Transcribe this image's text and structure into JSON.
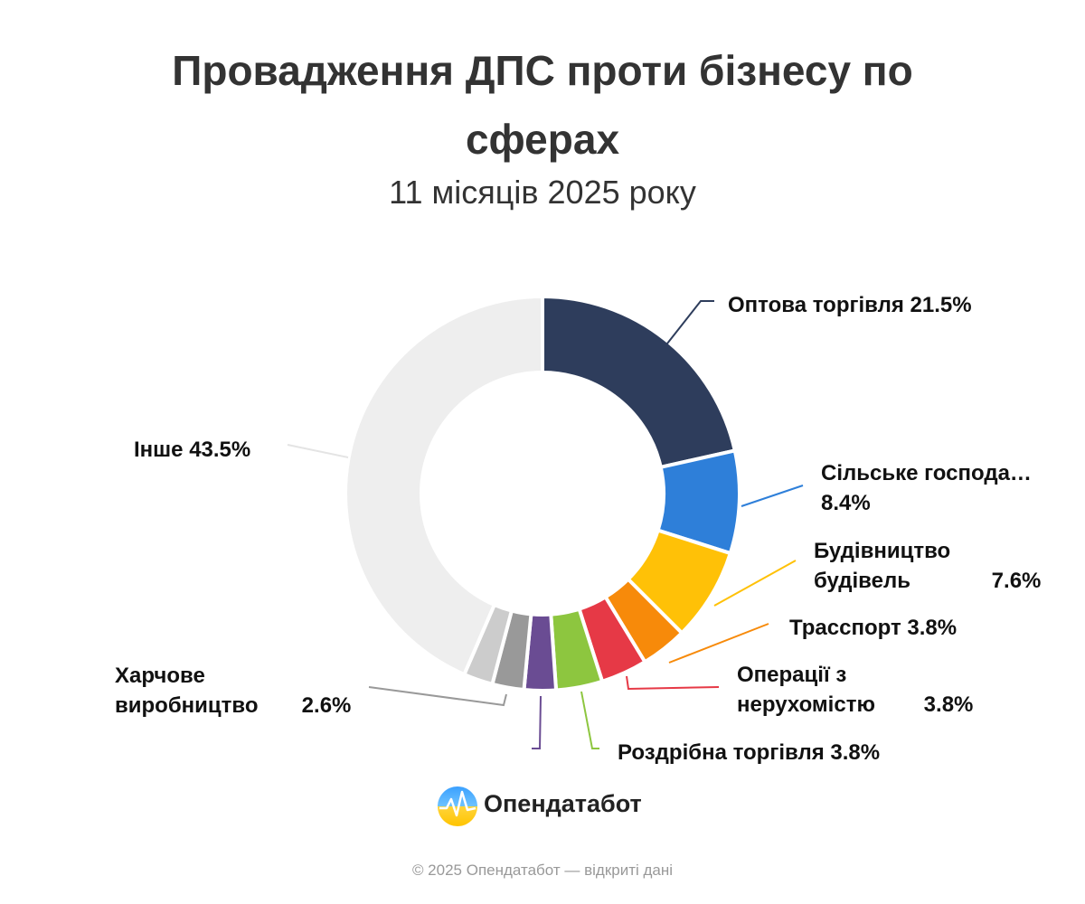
{
  "chart_data": {
    "type": "donut",
    "title": "Провадження ДПС проти бізнесу по сферах",
    "subtitle": "11 місяців 2025 року",
    "categories": [
      "Оптова торгівля",
      "Сільське господа…",
      "Будівництво будівель",
      "Трасспорт",
      "Операції з нерухомістю",
      "Роздрібна торгівля",
      null,
      "Харчове виробництво",
      null,
      "Інше"
    ],
    "values": [
      21.5,
      8.4,
      7.6,
      3.8,
      3.8,
      3.8,
      2.6,
      2.6,
      2.4,
      43.5
    ],
    "value_labels": [
      "21.5%",
      "8.4%",
      "7.6%",
      "3.8%",
      "3.8%",
      "3.8%",
      null,
      "2.6%",
      null,
      "43.5%"
    ],
    "colors": [
      "#2e3d5c",
      "#2e7fd9",
      "#ffc107",
      "#f78a0a",
      "#e63946",
      "#8dc63f",
      "#6a4c93",
      "#999999",
      "#cccccc",
      "#eeeeee"
    ]
  },
  "brand": "Опендатабот",
  "footer": "© 2025 Опендатабот — відкриті дані"
}
